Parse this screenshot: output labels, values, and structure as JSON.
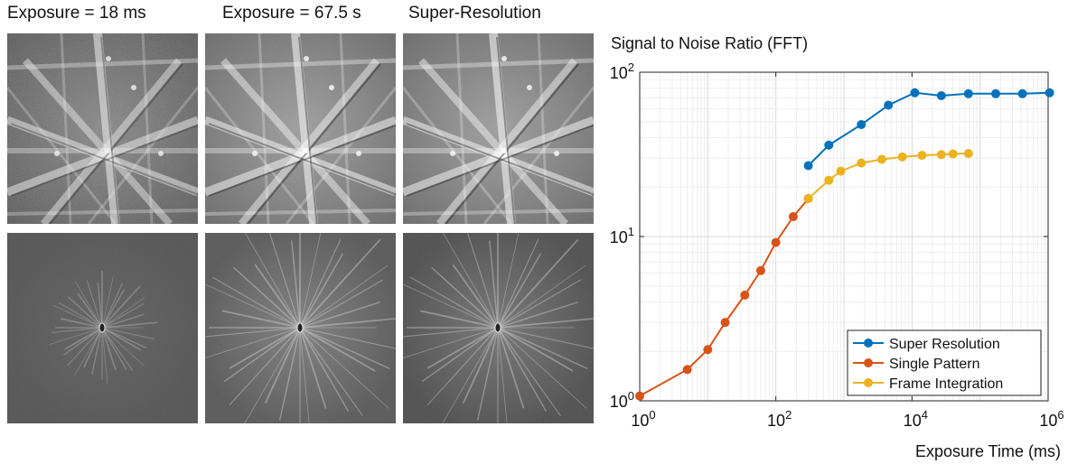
{
  "columns": [
    {
      "title": "Exposure = 18 ms"
    },
    {
      "title": "Exposure = 67.5 s"
    },
    {
      "title": "Super-Resolution"
    }
  ],
  "chart_data": {
    "type": "line",
    "title": "Signal to Noise Ratio (FFT)",
    "xlabel": "Exposure Time (ms)",
    "ylabel": "",
    "xscale": "log",
    "yscale": "log",
    "xlim": [
      1,
      1000000
    ],
    "ylim": [
      1,
      100
    ],
    "xticks": [
      {
        "value": 1,
        "label": "10^0"
      },
      {
        "value": 100,
        "label": "10^2"
      },
      {
        "value": 10000,
        "label": "10^4"
      },
      {
        "value": 1000000,
        "label": "10^6"
      }
    ],
    "yticks": [
      {
        "value": 1,
        "label": "10^0"
      },
      {
        "value": 10,
        "label": "10^1"
      },
      {
        "value": 100,
        "label": "10^2"
      }
    ],
    "grid": true,
    "legend": "bottom-right",
    "series": [
      {
        "name": "Super Resolution",
        "color": "#0072BD",
        "x": [
          300,
          600,
          1800,
          4500,
          11000,
          27000,
          67500,
          170000,
          420000,
          1050000
        ],
        "y": [
          27,
          36,
          48,
          63,
          75,
          72,
          74,
          74,
          74,
          75
        ]
      },
      {
        "name": "Single Pattern",
        "color": "#D95319",
        "x": [
          1,
          5,
          10,
          18,
          35,
          60,
          100,
          180,
          300
        ],
        "y": [
          1.07,
          1.55,
          2.05,
          3.0,
          4.4,
          6.2,
          9.2,
          13.2,
          17
        ]
      },
      {
        "name": "Frame Integration",
        "color": "#EDB120",
        "x": [
          300,
          600,
          900,
          1800,
          3600,
          7200,
          14000,
          27000,
          40000,
          67500
        ],
        "y": [
          17,
          22,
          25,
          28,
          29.5,
          30.5,
          31.2,
          31.5,
          31.8,
          32
        ]
      }
    ]
  }
}
